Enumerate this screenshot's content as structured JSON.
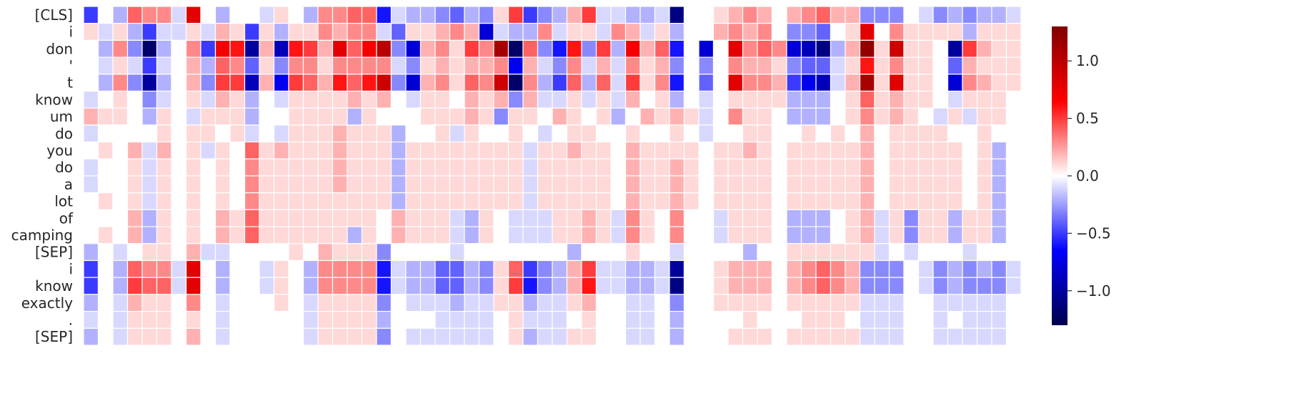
{
  "chart_data": {
    "type": "heatmap",
    "title": "",
    "xlabel": "",
    "ylabel": "",
    "rows": [
      "[CLS]",
      "i",
      "don",
      "'",
      "t",
      "know",
      "um",
      "do",
      "you",
      "do",
      "a",
      "lot",
      "of",
      "camping",
      "[SEP]",
      "i",
      "know",
      "exactly",
      ".",
      "[SEP]"
    ],
    "n_columns": 64,
    "x_tick_labels_shown": false,
    "colormap": "seismic",
    "colorbar": {
      "vmin": -1.3,
      "vmax": 1.3,
      "ticks": [
        1.0,
        0.5,
        0.0,
        -0.5,
        -1.0
      ],
      "tick_labels": [
        "1.0",
        "0.5",
        "0.0",
        "−0.5",
        "−1.0"
      ]
    },
    "values": [
      [
        -0.5,
        0.0,
        -0.2,
        0.4,
        0.3,
        0.3,
        -0.1,
        0.8,
        0.0,
        -0.2,
        0.0,
        0.0,
        -0.1,
        0.1,
        0.0,
        -0.2,
        0.3,
        0.3,
        0.4,
        0.4,
        -0.6,
        -0.1,
        -0.2,
        -0.2,
        -0.3,
        -0.4,
        -0.2,
        -0.3,
        0.1,
        0.5,
        -0.5,
        -0.3,
        -0.2,
        0.2,
        0.5,
        -0.1,
        -0.1,
        -0.2,
        -0.2,
        -0.1,
        -1.1,
        0.0,
        0.0,
        0.1,
        0.2,
        0.3,
        0.2,
        0.0,
        0.2,
        0.3,
        0.4,
        0.2,
        0.2,
        -0.3,
        -0.3,
        -0.3,
        0.0,
        -0.1,
        -0.3,
        -0.2,
        -0.3,
        -0.2,
        -0.2,
        -0.1
      ],
      [
        0.1,
        -0.1,
        0.1,
        -0.2,
        -0.5,
        -0.1,
        -0.1,
        0.1,
        -0.1,
        0.2,
        0.1,
        -0.5,
        0.1,
        -0.2,
        0.1,
        0.1,
        0.3,
        0.2,
        0.3,
        0.3,
        -0.1,
        -0.4,
        0.1,
        0.1,
        0.2,
        0.3,
        0.2,
        -0.8,
        -0.1,
        -0.2,
        -0.2,
        0.3,
        -0.1,
        0.1,
        0.1,
        -0.1,
        0.3,
        0.2,
        -0.1,
        0.1,
        -0.2,
        0.0,
        0.0,
        0.2,
        0.3,
        0.2,
        0.3,
        0.0,
        -0.3,
        -0.3,
        -0.4,
        0.0,
        0.1,
        0.8,
        0.0,
        0.3,
        0.1,
        0.1,
        0.1,
        0.1,
        -0.2,
        0.1,
        0.1,
        0.1
      ],
      [
        0.0,
        -0.2,
        0.3,
        -0.3,
        -1.2,
        -0.2,
        0.0,
        0.3,
        -0.5,
        0.7,
        0.6,
        -1.0,
        0.2,
        -0.9,
        0.6,
        0.5,
        0.2,
        0.8,
        0.4,
        0.7,
        1.0,
        -0.3,
        -0.8,
        0.2,
        0.3,
        0.1,
        0.5,
        0.3,
        1.1,
        -1.2,
        0.4,
        -0.3,
        -0.6,
        0.6,
        -0.3,
        0.5,
        -0.2,
        0.7,
        0.2,
        0.4,
        -0.6,
        0.0,
        -0.8,
        0.0,
        0.8,
        0.3,
        0.4,
        0.3,
        -0.8,
        -0.9,
        -1.1,
        -0.2,
        0.2,
        1.2,
        0.1,
        0.9,
        0.1,
        0.1,
        0.0,
        -1.0,
        0.5,
        0.2,
        0.1,
        0.1
      ],
      [
        0.0,
        -0.1,
        0.1,
        -0.1,
        -0.5,
        -0.1,
        0.0,
        0.2,
        -0.2,
        0.4,
        0.3,
        -0.4,
        0.1,
        -0.3,
        0.3,
        0.3,
        0.1,
        0.3,
        0.3,
        0.3,
        0.3,
        -0.1,
        -0.3,
        0.1,
        0.2,
        0.1,
        0.2,
        0.2,
        0.3,
        -0.7,
        0.2,
        -0.1,
        -0.3,
        0.3,
        -0.1,
        0.2,
        -0.1,
        0.3,
        0.1,
        0.2,
        -0.3,
        0.0,
        -0.3,
        0.0,
        0.3,
        0.2,
        0.2,
        0.1,
        -0.3,
        -0.4,
        -0.4,
        -0.1,
        0.1,
        0.6,
        0.1,
        0.3,
        0.1,
        0.1,
        0.0,
        -0.4,
        0.2,
        0.1,
        0.1,
        0.1
      ],
      [
        0.0,
        -0.2,
        0.3,
        -0.3,
        -1.0,
        -0.2,
        0.0,
        0.2,
        -0.3,
        0.5,
        0.5,
        -0.9,
        0.2,
        -0.7,
        0.5,
        0.4,
        0.2,
        0.6,
        0.4,
        0.6,
        0.9,
        -0.3,
        -0.8,
        0.2,
        0.3,
        0.1,
        0.4,
        0.3,
        0.9,
        -1.2,
        0.3,
        -0.2,
        -0.5,
        0.4,
        -0.2,
        0.4,
        -0.1,
        0.5,
        0.1,
        0.3,
        -0.6,
        0.0,
        -0.4,
        0.0,
        0.8,
        0.3,
        0.3,
        0.2,
        -0.5,
        -0.7,
        -0.9,
        -0.1,
        0.2,
        1.1,
        0.1,
        0.8,
        0.1,
        0.1,
        0.0,
        -0.8,
        0.3,
        0.2,
        0.1,
        0.1
      ],
      [
        -0.1,
        0.0,
        0.1,
        0.0,
        -0.3,
        -0.1,
        0.0,
        0.1,
        -0.1,
        0.2,
        0.1,
        -0.2,
        0.0,
        -0.1,
        0.1,
        0.1,
        0.1,
        0.1,
        0.2,
        0.1,
        0.2,
        0.0,
        -0.1,
        0.1,
        0.1,
        0.0,
        0.2,
        0.1,
        0.2,
        -0.3,
        0.2,
        -0.1,
        -0.1,
        0.1,
        -0.1,
        0.1,
        -0.1,
        0.2,
        0.0,
        0.1,
        -0.2,
        0.0,
        -0.1,
        0.0,
        0.1,
        0.1,
        0.1,
        0.1,
        -0.2,
        -0.2,
        -0.2,
        0.0,
        0.1,
        0.4,
        0.1,
        0.2,
        0.1,
        0.1,
        0.0,
        -0.1,
        0.1,
        0.1,
        0.1,
        0.0
      ],
      [
        0.2,
        0.1,
        0.1,
        0.0,
        -0.2,
        0.1,
        0.0,
        -0.1,
        0.1,
        0.1,
        0.1,
        -0.2,
        0.0,
        0.0,
        0.1,
        0.1,
        0.1,
        0.1,
        -0.2,
        0.1,
        0.0,
        0.0,
        0.0,
        0.1,
        0.1,
        0.1,
        0.2,
        0.1,
        -0.3,
        0.1,
        0.1,
        0.0,
        0.2,
        0.1,
        0.0,
        0.1,
        -0.2,
        0.0,
        0.2,
        0.1,
        0.2,
        0.1,
        -0.1,
        0.0,
        0.3,
        0.1,
        0.1,
        0.0,
        -0.2,
        -0.2,
        -0.2,
        0.0,
        0.1,
        0.3,
        0.1,
        0.2,
        0.1,
        0.0,
        -0.1,
        0.1,
        -0.1,
        0.1,
        0.1,
        0.0
      ],
      [
        -0.1,
        0.0,
        0.0,
        0.0,
        0.0,
        0.1,
        0.0,
        0.1,
        0.1,
        0.0,
        0.1,
        -0.1,
        0.0,
        -0.1,
        0.1,
        0.1,
        0.1,
        0.2,
        0.1,
        0.1,
        0.1,
        -0.2,
        0.0,
        0.0,
        0.1,
        -0.1,
        0.1,
        0.0,
        0.0,
        0.1,
        0.0,
        -0.1,
        0.0,
        0.1,
        0.1,
        0.0,
        0.0,
        0.1,
        0.0,
        0.0,
        0.1,
        0.0,
        -0.1,
        0.0,
        0.0,
        0.1,
        0.1,
        0.0,
        0.0,
        0.1,
        0.0,
        0.1,
        0.0,
        0.2,
        0.0,
        0.1,
        0.1,
        0.1,
        0.1,
        0.0,
        0.0,
        0.1,
        0.0,
        0.0
      ],
      [
        0.0,
        0.1,
        0.0,
        0.2,
        -0.1,
        0.2,
        0.0,
        0.1,
        -0.1,
        0.1,
        0.0,
        0.4,
        0.1,
        0.2,
        0.1,
        0.1,
        0.1,
        0.2,
        0.1,
        0.1,
        0.1,
        -0.2,
        0.1,
        0.1,
        0.1,
        0.1,
        0.1,
        0.1,
        0.1,
        0.1,
        -0.1,
        0.1,
        0.1,
        0.2,
        0.1,
        0.1,
        0.0,
        0.2,
        0.1,
        0.1,
        0.1,
        0.1,
        0.0,
        0.1,
        0.1,
        0.2,
        0.1,
        0.0,
        0.1,
        0.1,
        0.1,
        0.1,
        0.1,
        0.2,
        0.0,
        0.1,
        0.1,
        0.1,
        0.1,
        0.1,
        0.0,
        0.1,
        -0.2,
        0.0
      ],
      [
        -0.1,
        0.0,
        0.0,
        0.1,
        -0.1,
        0.1,
        0.0,
        0.1,
        0.0,
        0.1,
        0.0,
        0.3,
        0.1,
        0.1,
        0.1,
        0.1,
        0.1,
        0.2,
        0.1,
        0.1,
        0.1,
        -0.2,
        0.1,
        0.1,
        0.1,
        0.1,
        0.1,
        0.1,
        0.1,
        0.1,
        -0.1,
        0.1,
        0.1,
        0.1,
        0.1,
        0.1,
        0.0,
        0.2,
        0.1,
        0.1,
        0.2,
        0.1,
        0.0,
        0.1,
        0.1,
        0.1,
        0.1,
        0.0,
        0.1,
        0.1,
        0.1,
        0.1,
        0.1,
        0.2,
        0.0,
        0.1,
        0.1,
        0.1,
        0.1,
        0.1,
        0.0,
        0.1,
        -0.2,
        0.0
      ],
      [
        -0.1,
        0.0,
        0.0,
        0.1,
        -0.1,
        0.1,
        0.0,
        0.1,
        0.0,
        0.1,
        0.0,
        0.3,
        0.1,
        0.1,
        0.1,
        0.1,
        0.1,
        0.2,
        0.1,
        0.1,
        0.1,
        -0.2,
        0.1,
        0.1,
        0.1,
        0.1,
        0.1,
        0.1,
        0.1,
        0.1,
        -0.1,
        0.1,
        0.1,
        0.1,
        0.1,
        0.1,
        0.0,
        0.2,
        0.1,
        0.1,
        0.2,
        0.1,
        0.0,
        0.1,
        0.1,
        0.1,
        0.1,
        0.0,
        0.1,
        0.1,
        0.1,
        0.1,
        0.1,
        0.2,
        0.0,
        0.1,
        0.1,
        0.1,
        0.1,
        0.1,
        0.0,
        0.1,
        -0.2,
        0.0
      ],
      [
        0.0,
        0.1,
        0.0,
        0.1,
        -0.1,
        0.1,
        0.0,
        0.1,
        0.0,
        0.1,
        0.0,
        0.3,
        0.1,
        0.1,
        0.1,
        0.1,
        0.1,
        0.1,
        0.1,
        0.1,
        0.1,
        -0.2,
        0.1,
        0.1,
        0.1,
        0.1,
        0.1,
        0.1,
        0.1,
        0.1,
        -0.1,
        0.1,
        0.1,
        0.1,
        0.1,
        0.1,
        0.0,
        0.2,
        0.1,
        0.1,
        0.2,
        0.1,
        0.0,
        0.1,
        0.1,
        0.1,
        0.1,
        0.0,
        0.1,
        0.1,
        0.1,
        0.1,
        0.1,
        0.2,
        0.0,
        0.1,
        0.1,
        0.1,
        0.1,
        0.1,
        0.0,
        0.1,
        -0.2,
        0.0
      ],
      [
        0.0,
        0.0,
        0.0,
        0.2,
        -0.2,
        0.1,
        0.0,
        0.1,
        0.0,
        0.2,
        0.1,
        0.4,
        0.1,
        0.1,
        0.1,
        0.1,
        0.1,
        0.1,
        0.1,
        0.1,
        0.0,
        0.2,
        0.1,
        0.1,
        0.1,
        -0.1,
        -0.2,
        0.1,
        0.0,
        -0.1,
        -0.1,
        -0.1,
        0.1,
        0.1,
        0.2,
        0.1,
        -0.1,
        0.3,
        0.1,
        0.0,
        0.3,
        0.0,
        0.0,
        -0.1,
        0.1,
        0.1,
        0.1,
        0.0,
        -0.2,
        -0.2,
        -0.2,
        0.0,
        0.1,
        0.2,
        -0.1,
        0.1,
        -0.3,
        0.1,
        0.1,
        -0.2,
        0.1,
        0.1,
        -0.2,
        0.0
      ],
      [
        0.0,
        0.1,
        0.0,
        0.2,
        -0.2,
        0.1,
        0.0,
        0.1,
        0.0,
        0.2,
        0.1,
        0.4,
        0.1,
        0.1,
        0.1,
        0.1,
        0.1,
        0.1,
        -0.2,
        0.1,
        0.0,
        0.2,
        0.1,
        0.1,
        0.1,
        -0.1,
        -0.2,
        0.1,
        0.0,
        -0.1,
        -0.1,
        -0.1,
        0.1,
        0.1,
        0.2,
        0.1,
        -0.1,
        0.3,
        0.1,
        0.0,
        0.3,
        0.0,
        0.0,
        -0.1,
        0.1,
        0.1,
        0.1,
        0.0,
        -0.2,
        -0.2,
        -0.2,
        0.0,
        0.1,
        0.2,
        -0.1,
        0.1,
        -0.3,
        0.1,
        0.1,
        -0.2,
        0.1,
        0.1,
        -0.2,
        0.0
      ],
      [
        -0.2,
        0.0,
        -0.1,
        0.0,
        0.1,
        0.1,
        0.0,
        0.2,
        -0.1,
        -0.1,
        0.0,
        0.0,
        0.0,
        0.0,
        0.1,
        0.0,
        0.2,
        0.1,
        0.1,
        0.1,
        -0.3,
        0.0,
        0.0,
        0.0,
        0.0,
        -0.1,
        0.0,
        0.0,
        0.0,
        0.0,
        0.0,
        0.0,
        0.0,
        -0.2,
        0.0,
        0.0,
        0.0,
        0.1,
        0.0,
        0.0,
        -0.1,
        0.0,
        0.0,
        0.0,
        0.0,
        -0.2,
        0.0,
        0.0,
        0.1,
        0.1,
        0.1,
        0.1,
        0.1,
        0.1,
        -0.1,
        0.0,
        -0.1,
        0.0,
        0.0,
        0.0,
        -0.1,
        0.0,
        0.0,
        0.0
      ],
      [
        -0.5,
        0.0,
        -0.2,
        0.4,
        0.3,
        0.3,
        -0.1,
        0.8,
        0.0,
        -0.2,
        0.0,
        0.0,
        -0.1,
        0.1,
        0.0,
        -0.2,
        0.3,
        0.3,
        0.3,
        0.3,
        -0.6,
        -0.1,
        -0.2,
        -0.2,
        -0.4,
        -0.4,
        -0.2,
        -0.3,
        0.1,
        0.4,
        -0.5,
        -0.3,
        -0.2,
        0.2,
        0.5,
        -0.1,
        -0.1,
        -0.2,
        -0.2,
        -0.1,
        -1.0,
        0.0,
        0.0,
        0.1,
        0.2,
        0.2,
        0.2,
        0.0,
        0.2,
        0.3,
        0.4,
        0.3,
        0.2,
        -0.3,
        -0.3,
        -0.3,
        0.0,
        -0.1,
        -0.3,
        -0.2,
        -0.3,
        -0.2,
        -0.3,
        -0.1
      ],
      [
        -0.5,
        0.0,
        -0.2,
        0.5,
        0.4,
        0.4,
        -0.1,
        0.8,
        0.0,
        -0.2,
        0.0,
        0.0,
        -0.1,
        0.1,
        0.0,
        -0.2,
        0.3,
        0.3,
        0.3,
        0.3,
        -0.6,
        -0.1,
        -0.2,
        -0.2,
        -0.4,
        -0.4,
        -0.2,
        -0.3,
        0.1,
        0.5,
        -0.6,
        -0.3,
        -0.2,
        0.2,
        0.6,
        -0.1,
        -0.1,
        -0.2,
        -0.2,
        -0.1,
        -1.1,
        0.0,
        0.0,
        0.1,
        0.2,
        0.2,
        0.2,
        0.0,
        0.2,
        0.3,
        0.4,
        0.3,
        0.2,
        -0.3,
        -0.3,
        -0.3,
        0.0,
        -0.1,
        -0.3,
        -0.2,
        -0.3,
        -0.3,
        -0.3,
        -0.1
      ],
      [
        -0.2,
        0.0,
        -0.1,
        0.2,
        0.1,
        0.1,
        0.0,
        0.3,
        0.0,
        -0.1,
        0.0,
        0.0,
        0.0,
        0.1,
        0.0,
        -0.1,
        0.1,
        0.1,
        0.1,
        0.1,
        -0.3,
        0.0,
        -0.1,
        -0.1,
        -0.1,
        -0.2,
        -0.1,
        -0.1,
        0.1,
        0.1,
        -0.2,
        -0.1,
        -0.1,
        0.1,
        0.2,
        0.0,
        0.0,
        -0.1,
        -0.1,
        0.0,
        -0.3,
        0.0,
        0.0,
        0.1,
        0.1,
        0.1,
        0.1,
        0.0,
        0.1,
        0.1,
        0.1,
        0.1,
        0.1,
        -0.1,
        -0.1,
        -0.1,
        0.0,
        0.0,
        -0.1,
        -0.1,
        -0.1,
        -0.1,
        -0.1,
        0.0
      ],
      [
        -0.1,
        0.0,
        -0.1,
        0.1,
        0.1,
        0.1,
        0.0,
        0.1,
        0.0,
        -0.1,
        0.0,
        0.0,
        0.0,
        0.0,
        0.0,
        -0.1,
        0.1,
        0.1,
        0.1,
        0.1,
        -0.2,
        0.0,
        0.0,
        0.0,
        -0.1,
        -0.1,
        -0.1,
        -0.1,
        0.0,
        0.1,
        -0.1,
        -0.1,
        -0.1,
        0.0,
        0.1,
        0.0,
        0.0,
        -0.1,
        -0.1,
        0.0,
        -0.2,
        0.0,
        0.0,
        0.0,
        0.0,
        0.1,
        0.0,
        0.0,
        0.0,
        0.1,
        0.1,
        0.1,
        0.0,
        -0.1,
        -0.1,
        -0.1,
        0.0,
        0.0,
        -0.1,
        0.0,
        -0.1,
        -0.1,
        -0.1,
        0.0
      ],
      [
        -0.2,
        0.0,
        -0.1,
        0.1,
        0.1,
        0.1,
        0.0,
        0.2,
        0.0,
        -0.1,
        0.0,
        0.0,
        0.0,
        0.0,
        0.0,
        -0.1,
        0.1,
        0.1,
        0.1,
        0.1,
        -0.3,
        0.0,
        -0.1,
        -0.1,
        -0.1,
        -0.1,
        -0.1,
        -0.1,
        0.0,
        0.1,
        -0.2,
        -0.1,
        -0.1,
        0.1,
        0.1,
        0.0,
        0.0,
        -0.1,
        -0.1,
        0.0,
        -0.2,
        0.0,
        0.0,
        0.0,
        0.1,
        0.1,
        0.1,
        0.0,
        0.1,
        0.1,
        0.1,
        0.1,
        0.1,
        -0.1,
        -0.1,
        -0.1,
        0.0,
        0.0,
        -0.1,
        -0.1,
        -0.1,
        -0.1,
        -0.1,
        0.0
      ]
    ]
  }
}
